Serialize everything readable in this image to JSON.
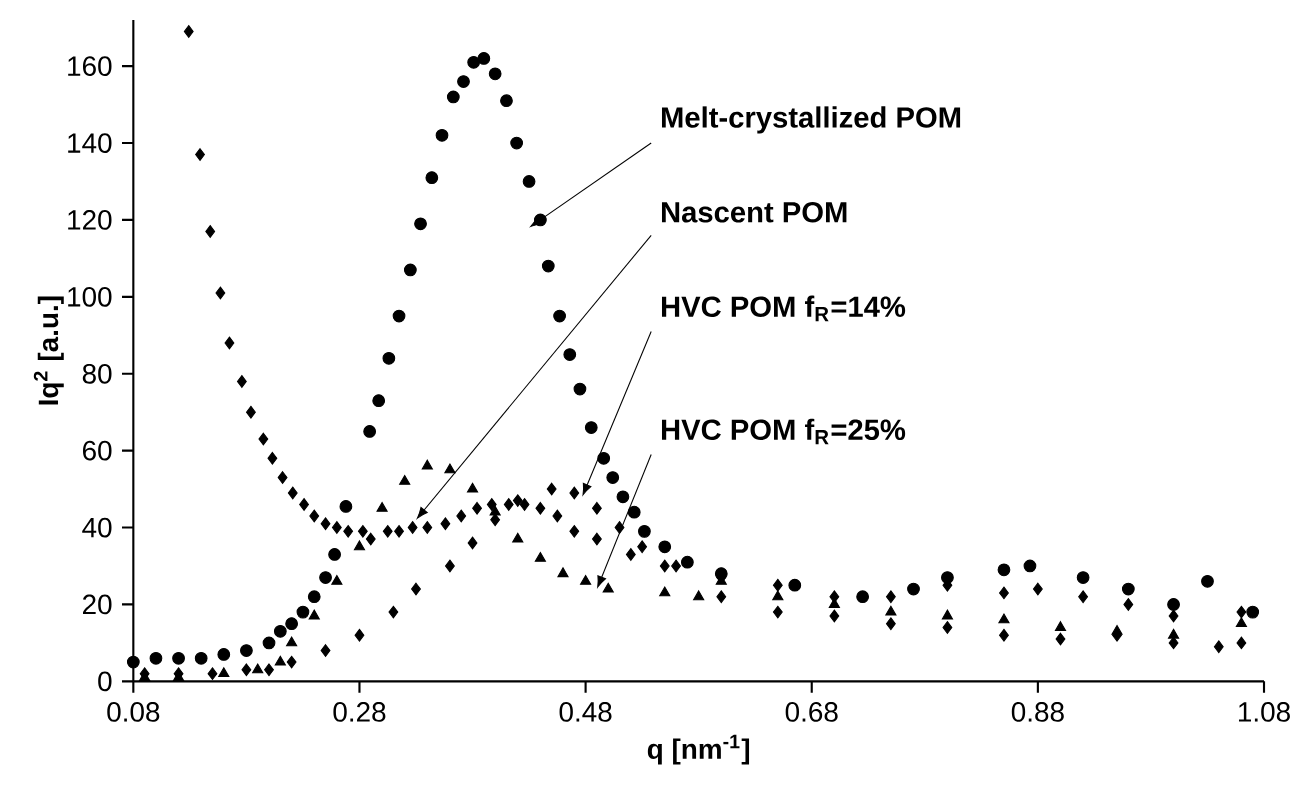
{
  "chart_data": {
    "type": "scatter",
    "xlabel": "q [nm$^{-1}$]",
    "ylabel": "Iq$^{2}$ [a.u.]",
    "xlim": [
      0.08,
      1.08
    ],
    "xticks": [
      0.08,
      0.28,
      0.48,
      0.68,
      0.88,
      1.08
    ],
    "ylim": [
      0,
      172
    ],
    "yticks": [
      0,
      20,
      40,
      60,
      80,
      100,
      120,
      140,
      160
    ],
    "grid": false,
    "series": [
      {
        "color": "#000000",
        "marker": "circle",
        "x": [
          0.08,
          0.1,
          0.12,
          0.14,
          0.16,
          0.18,
          0.2,
          0.21,
          0.22,
          0.23,
          0.24,
          0.25,
          0.258,
          0.268,
          0.289,
          0.297,
          0.306,
          0.315,
          0.325,
          0.334,
          0.344,
          0.353,
          0.363,
          0.372,
          0.381,
          0.39,
          0.4,
          0.41,
          0.419,
          0.43,
          0.44,
          0.447,
          0.457,
          0.466,
          0.475,
          0.485,
          0.496,
          0.504,
          0.513,
          0.523,
          0.532,
          0.55,
          0.57,
          0.6,
          0.665,
          0.725,
          0.77,
          0.8,
          0.85,
          0.873,
          0.92,
          0.96,
          1.0,
          1.03,
          1.07
        ],
        "values": [
          5,
          6,
          6,
          6,
          7,
          8,
          10,
          13,
          15,
          18,
          22,
          27,
          33,
          45.5,
          65,
          73,
          84,
          95,
          107,
          119,
          131,
          142,
          152,
          156,
          161,
          162,
          158,
          151,
          140,
          130,
          120,
          108,
          95,
          85,
          76,
          66,
          58,
          53,
          48,
          44,
          39,
          35,
          31,
          28,
          25,
          22,
          24,
          27,
          29,
          30,
          27,
          24,
          20,
          26,
          18
        ]
      },
      {
        "color": "#000000",
        "marker": "diamond",
        "x": [
          0.129,
          0.139,
          0.148,
          0.157,
          0.165,
          0.176,
          0.184,
          0.195,
          0.203,
          0.212,
          0.221,
          0.231,
          0.24,
          0.25,
          0.26,
          0.27,
          0.283,
          0.29,
          0.305,
          0.315,
          0.327,
          0.34,
          0.356,
          0.37,
          0.384,
          0.397,
          0.412,
          0.426,
          0.44,
          0.455,
          0.47,
          0.49,
          0.52,
          0.55,
          0.6,
          0.65,
          0.7,
          0.75,
          0.8,
          0.85,
          0.9,
          0.95,
          1.0,
          1.04,
          1.06
        ],
        "values": [
          169,
          137,
          117,
          101,
          88,
          78,
          70,
          63,
          58,
          53,
          49,
          46,
          43,
          41,
          40,
          39,
          39,
          37,
          39,
          39,
          40,
          40,
          41,
          43,
          45,
          46,
          46,
          46,
          45,
          43,
          39,
          37,
          33,
          30,
          22,
          18,
          17,
          15,
          14,
          12,
          11,
          12,
          10,
          9,
          10
        ]
      },
      {
        "color": "#000000",
        "marker": "diamond",
        "x": [
          0.09,
          0.12,
          0.15,
          0.18,
          0.2,
          0.22,
          0.25,
          0.28,
          0.31,
          0.33,
          0.36,
          0.38,
          0.4,
          0.42,
          0.45,
          0.47,
          0.49,
          0.51,
          0.53,
          0.56,
          0.6,
          0.65,
          0.7,
          0.75,
          0.8,
          0.85,
          0.88,
          0.92,
          0.96,
          1.0,
          1.06
        ],
        "values": [
          2,
          2,
          2,
          3,
          3,
          5,
          8,
          12,
          18,
          24,
          30,
          36,
          42,
          47,
          50,
          49,
          45,
          40,
          35,
          30,
          27,
          25,
          22,
          22,
          25,
          23,
          24,
          22,
          20,
          17,
          18
        ]
      },
      {
        "color": "#000000",
        "marker": "triangle",
        "x": [
          0.09,
          0.12,
          0.16,
          0.19,
          0.21,
          0.22,
          0.24,
          0.26,
          0.28,
          0.3,
          0.32,
          0.34,
          0.36,
          0.38,
          0.4,
          0.42,
          0.44,
          0.46,
          0.48,
          0.5,
          0.55,
          0.58,
          0.6,
          0.65,
          0.7,
          0.75,
          0.8,
          0.85,
          0.9,
          0.95,
          1.0,
          1.06
        ],
        "values": [
          1,
          1,
          2,
          3,
          5,
          10,
          17,
          26,
          35,
          45,
          52,
          56,
          55,
          50,
          44,
          37,
          32,
          28,
          26,
          24,
          23,
          22,
          26,
          22,
          20,
          18,
          17,
          16,
          14,
          13,
          12,
          15
        ]
      }
    ],
    "annotations": [
      {
        "text": "Melt-crystallized POM",
        "x": 0.43,
        "y": 118
      },
      {
        "text": "Nascent POM",
        "x": 0.33,
        "y": 42
      },
      {
        "text": "HVC POM f$_{R}$=14%",
        "x": 0.477,
        "y": 48
      },
      {
        "text": "HVC POM  f$_{R}$=25%",
        "x": 0.49,
        "y": 24
      }
    ]
  }
}
